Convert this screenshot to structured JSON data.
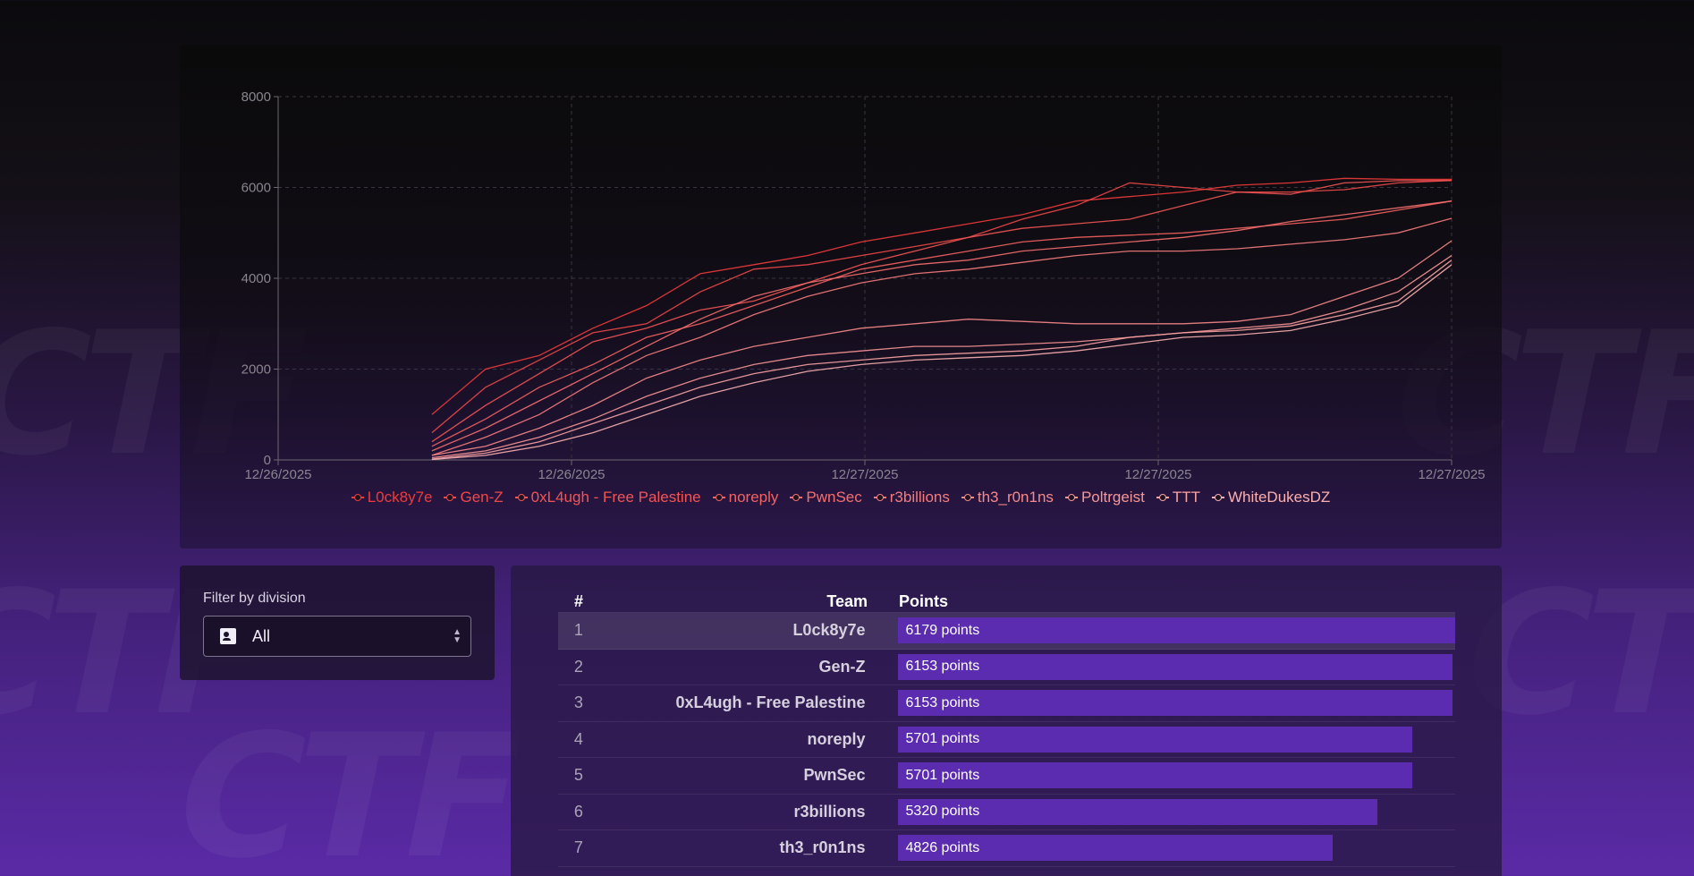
{
  "chart_data": {
    "type": "line",
    "ylim": [
      0,
      8000
    ],
    "yticks": [
      "0",
      "2000",
      "4000",
      "6000",
      "8000"
    ],
    "xticks": [
      "12/26/2025",
      "12/26/2025",
      "12/27/2025",
      "12/27/2025",
      "12/27/2025"
    ],
    "grid": true,
    "legend_position": "bottom",
    "series": [
      {
        "name": "L0ck8y7e",
        "color": "#ef3b3b",
        "values": [
          1000,
          2000,
          2300,
          2900,
          3400,
          4100,
          4300,
          4500,
          4800,
          5000,
          5200,
          5400,
          5700,
          5800,
          5900,
          6050,
          6100,
          6200,
          6180,
          6179
        ]
      },
      {
        "name": "Gen-Z",
        "color": "#f04848",
        "values": [
          600,
          1600,
          2200,
          2800,
          3000,
          3700,
          4200,
          4300,
          4500,
          4700,
          4900,
          5300,
          5600,
          6100,
          6000,
          5900,
          5900,
          5950,
          6100,
          6153
        ]
      },
      {
        "name": "0xL4ugh - Free Palestine",
        "color": "#f25555",
        "values": [
          400,
          1200,
          1900,
          2600,
          2900,
          3300,
          3500,
          3900,
          4300,
          4600,
          4900,
          5100,
          5200,
          5300,
          5600,
          5900,
          5850,
          6100,
          6150,
          6153
        ]
      },
      {
        "name": "noreply",
        "color": "#f46262",
        "values": [
          300,
          900,
          1600,
          2100,
          2700,
          3000,
          3400,
          3800,
          4200,
          4400,
          4600,
          4800,
          4900,
          4950,
          5000,
          5100,
          5200,
          5300,
          5500,
          5701
        ]
      },
      {
        "name": "PwnSec",
        "color": "#f56f6f",
        "values": [
          200,
          700,
          1300,
          1900,
          2500,
          3100,
          3600,
          3900,
          4100,
          4300,
          4400,
          4600,
          4700,
          4800,
          4900,
          5050,
          5250,
          5400,
          5550,
          5701
        ]
      },
      {
        "name": "r3billions",
        "color": "#f67c7c",
        "values": [
          100,
          500,
          1000,
          1700,
          2300,
          2700,
          3200,
          3600,
          3900,
          4100,
          4200,
          4350,
          4500,
          4600,
          4600,
          4650,
          4750,
          4850,
          5000,
          5320
        ]
      },
      {
        "name": "th3_r0n1ns",
        "color": "#f78989",
        "values": [
          100,
          300,
          700,
          1200,
          1800,
          2200,
          2500,
          2700,
          2900,
          3000,
          3100,
          3050,
          3000,
          3000,
          3000,
          3050,
          3200,
          3600,
          4000,
          4826
        ]
      },
      {
        "name": "Poltrgeist",
        "color": "#f89696",
        "values": [
          50,
          200,
          500,
          900,
          1400,
          1800,
          2100,
          2300,
          2400,
          2500,
          2500,
          2550,
          2600,
          2700,
          2800,
          2900,
          3000,
          3300,
          3700,
          4500
        ]
      },
      {
        "name": "TTT",
        "color": "#f9a3a3",
        "values": [
          20,
          150,
          400,
          800,
          1200,
          1600,
          1900,
          2100,
          2200,
          2300,
          2350,
          2400,
          2500,
          2700,
          2800,
          2850,
          2950,
          3200,
          3500,
          4400
        ]
      },
      {
        "name": "WhiteDukesDZ",
        "color": "#fab0b0",
        "values": [
          10,
          100,
          300,
          600,
          1000,
          1400,
          1700,
          1950,
          2100,
          2200,
          2250,
          2300,
          2400,
          2550,
          2700,
          2750,
          2850,
          3100,
          3400,
          4300
        ]
      }
    ]
  },
  "filter": {
    "label": "Filter by division",
    "selected": "All"
  },
  "table": {
    "headers": {
      "rank": "#",
      "team": "Team",
      "points": "Points"
    },
    "max_points": 6179,
    "rows": [
      {
        "rank": "1",
        "team": "L0ck8y7e",
        "points": 6179,
        "points_label": "6179 points"
      },
      {
        "rank": "2",
        "team": "Gen-Z",
        "points": 6153,
        "points_label": "6153 points"
      },
      {
        "rank": "3",
        "team": "0xL4ugh - Free Palestine",
        "points": 6153,
        "points_label": "6153 points"
      },
      {
        "rank": "4",
        "team": "noreply",
        "points": 5701,
        "points_label": "5701 points"
      },
      {
        "rank": "5",
        "team": "PwnSec",
        "points": 5701,
        "points_label": "5701 points"
      },
      {
        "rank": "6",
        "team": "r3billions",
        "points": 5320,
        "points_label": "5320 points"
      },
      {
        "rank": "7",
        "team": "th3_r0n1ns",
        "points": 4826,
        "points_label": "4826 points"
      }
    ]
  },
  "background": {
    "watermark_text": "CTF"
  }
}
